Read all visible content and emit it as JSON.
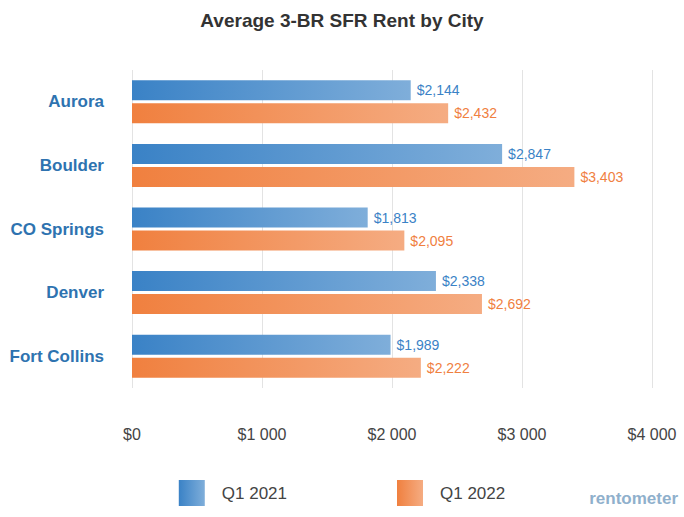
{
  "chart_data": {
    "type": "bar",
    "title": "Average 3-BR SFR Rent by City",
    "orientation": "horizontal",
    "categories": [
      "Aurora",
      "Boulder",
      "CO Springs",
      "Denver",
      "Fort Collins"
    ],
    "series": [
      {
        "name": "Q1 2021",
        "color": "#3a82c6",
        "values": [
          2144,
          2847,
          1813,
          2338,
          1989
        ],
        "value_labels": [
          "$2,144",
          "$2,847",
          "$1,813",
          "$2,338",
          "$1,989"
        ]
      },
      {
        "name": "Q1 2022",
        "color": "#f0803f",
        "values": [
          2432,
          3403,
          2095,
          2692,
          2222
        ],
        "value_labels": [
          "$2,432",
          "$3,403",
          "$2,095",
          "$2,692",
          "$2,222"
        ]
      }
    ],
    "xlim": [
      0,
      4000
    ],
    "xticks": [
      {
        "value": 0,
        "label": "$0"
      },
      {
        "value": 1000,
        "label": "$1 000"
      },
      {
        "value": 2000,
        "label": "$2 000"
      },
      {
        "value": 3000,
        "label": "$3 000"
      },
      {
        "value": 4000,
        "label": "$4 000"
      }
    ],
    "grid": true,
    "legend": "bottom",
    "data_labels": true,
    "annotations": [
      "rentometer"
    ]
  }
}
